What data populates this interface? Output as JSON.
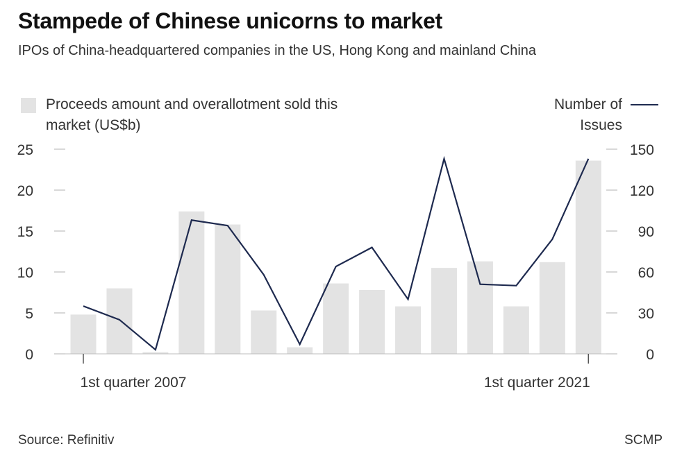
{
  "title": "Stampede of Chinese unicorns to market",
  "subtitle": "IPOs of China-headquartered companies in the US, Hong Kong and mainland China",
  "legend": {
    "bars_label": "Proceeds amount and overallotment sold this market (US$b)",
    "line_label": "Number of Issues"
  },
  "source": "Source: Refinitiv",
  "credit": "SCMP",
  "colors": {
    "bar": "#e3e3e3",
    "line": "#1e2a4f",
    "tick": "#bdbdbd"
  },
  "chart_data": {
    "type": "bar",
    "title": "Stampede of Chinese unicorns to market",
    "x_tick_labels": [
      "1st quarter 2007",
      "1st quarter 2021"
    ],
    "left_axis": {
      "ylim": [
        0,
        25
      ],
      "ticks": [
        0,
        5,
        10,
        15,
        20,
        25
      ]
    },
    "right_axis": {
      "ylim": [
        0,
        150
      ],
      "ticks": [
        0,
        30,
        60,
        90,
        120,
        150
      ]
    },
    "grid": false,
    "legend_placement": "top",
    "series": [
      {
        "name": "Proceeds amount and overallotment sold this market (US$b)",
        "type": "bar",
        "axis": "left",
        "values": [
          4.8,
          8.0,
          0.2,
          17.4,
          15.8,
          5.3,
          0.8,
          8.6,
          7.8,
          5.8,
          10.5,
          11.3,
          5.8,
          11.2,
          23.6
        ]
      },
      {
        "name": "Number of Issues",
        "type": "line",
        "axis": "right",
        "values": [
          35,
          25,
          3,
          98,
          94,
          58,
          7,
          64,
          78,
          40,
          143,
          51,
          50,
          84,
          143
        ]
      }
    ]
  }
}
